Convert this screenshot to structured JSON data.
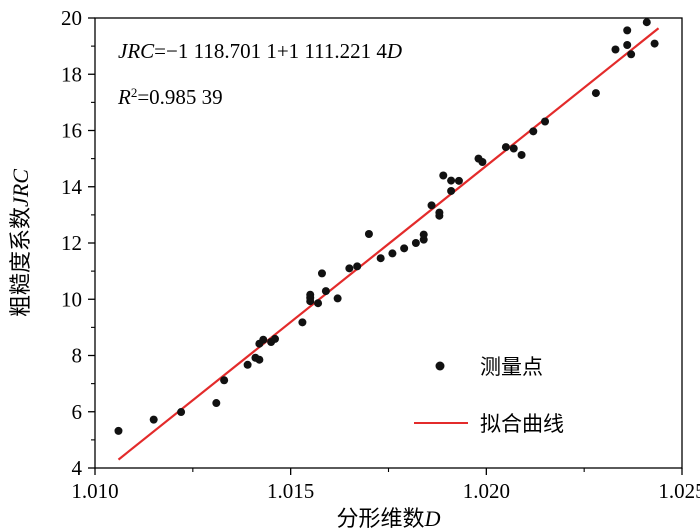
{
  "chart_data": {
    "type": "scatter",
    "xlabel": "分形维数",
    "xlabel_var": "D",
    "ylabel": "粗糙度系数",
    "ylabel_var": "JRC",
    "xlim": [
      1.01,
      1.025
    ],
    "ylim": [
      4,
      20
    ],
    "x_ticks": [
      "1.010",
      "1.015",
      "1.020",
      "1.025"
    ],
    "y_ticks": [
      "4",
      "6",
      "8",
      "10",
      "12",
      "14",
      "16",
      "18",
      "20"
    ],
    "grid": false,
    "equation": {
      "lhs": "JRC",
      "rhs_prefix": "=−1 118.701 1+1 111.221 4",
      "rhs_var": "D"
    },
    "r_squared": {
      "symbol": "R",
      "exponent": "2",
      "value": "=0.985 39"
    },
    "legend": {
      "position": "bottom-right",
      "points_label": "测量点",
      "fit_label": "拟合曲线"
    },
    "colors": {
      "points": "#111111",
      "fit": "#e32b2b",
      "axis": "#000000"
    },
    "series": [
      {
        "name": "测量点",
        "kind": "points",
        "points": [
          [
            1.0106,
            5.32
          ],
          [
            1.0115,
            5.72
          ],
          [
            1.0122,
            5.99
          ],
          [
            1.0131,
            6.31
          ],
          [
            1.0133,
            7.12
          ],
          [
            1.0139,
            7.67
          ],
          [
            1.0141,
            7.92
          ],
          [
            1.0142,
            7.85
          ],
          [
            1.0142,
            8.42
          ],
          [
            1.0143,
            8.56
          ],
          [
            1.0145,
            8.48
          ],
          [
            1.0146,
            8.59
          ],
          [
            1.0153,
            9.18
          ],
          [
            1.0155,
            9.93
          ],
          [
            1.0155,
            10.05
          ],
          [
            1.0155,
            10.16
          ],
          [
            1.0157,
            9.86
          ],
          [
            1.0158,
            10.92
          ],
          [
            1.0159,
            10.29
          ],
          [
            1.0162,
            10.03
          ],
          [
            1.0165,
            11.1
          ],
          [
            1.0167,
            11.17
          ],
          [
            1.017,
            12.32
          ],
          [
            1.0173,
            11.46
          ],
          [
            1.0176,
            11.63
          ],
          [
            1.0179,
            11.81
          ],
          [
            1.0182,
            12.0
          ],
          [
            1.0184,
            12.12
          ],
          [
            1.0184,
            12.3
          ],
          [
            1.0186,
            13.34
          ],
          [
            1.0188,
            12.97
          ],
          [
            1.0188,
            13.08
          ],
          [
            1.0189,
            14.4
          ],
          [
            1.0191,
            13.85
          ],
          [
            1.0191,
            14.22
          ],
          [
            1.0193,
            14.21
          ],
          [
            1.0198,
            15.0
          ],
          [
            1.0199,
            14.88
          ],
          [
            1.0205,
            15.41
          ],
          [
            1.0207,
            15.36
          ],
          [
            1.0209,
            15.13
          ],
          [
            1.0212,
            15.97
          ],
          [
            1.0215,
            16.32
          ],
          [
            1.0228,
            17.33
          ],
          [
            1.0233,
            18.88
          ],
          [
            1.0236,
            19.04
          ],
          [
            1.0236,
            19.56
          ],
          [
            1.0237,
            18.71
          ],
          [
            1.0241,
            19.85
          ],
          [
            1.0243,
            19.09
          ]
        ]
      },
      {
        "name": "拟合曲线",
        "kind": "line",
        "intercept": -1118.7011,
        "slope": 1111.2214,
        "x_range": [
          1.0106,
          1.0244
        ]
      }
    ]
  }
}
